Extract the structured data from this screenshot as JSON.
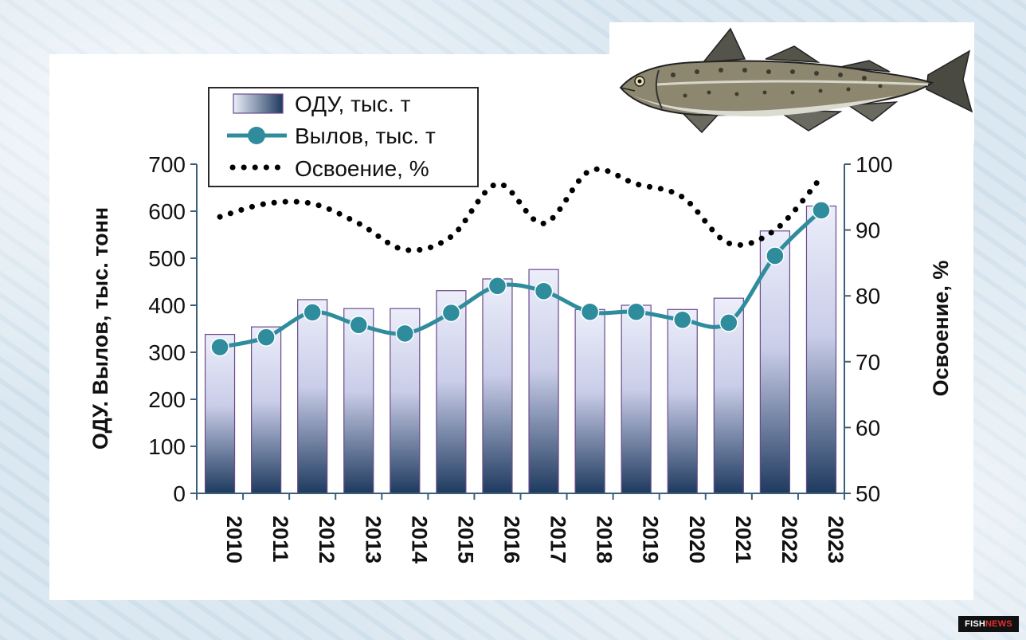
{
  "chart_data": {
    "type": "bar",
    "categories": [
      "2010",
      "2011",
      "2012",
      "2013",
      "2014",
      "2015",
      "2016",
      "2017",
      "2018",
      "2019",
      "2020",
      "2021",
      "2022",
      "2023"
    ],
    "series": [
      {
        "name": "ОДУ, тыс. т",
        "type": "bar",
        "axis": "left",
        "values": [
          338,
          354,
          412,
          393,
          393,
          431,
          456,
          476,
          391,
          400,
          391,
          415,
          558,
          611
        ]
      },
      {
        "name": "Вылов, тыс. т",
        "type": "line-marker",
        "axis": "left",
        "values": [
          311,
          332,
          385,
          358,
          340,
          384,
          441,
          430,
          386,
          386,
          369,
          363,
          505,
          602
        ]
      },
      {
        "name": "Освоение, %",
        "type": "dotted-line",
        "axis": "right",
        "values": [
          92,
          94,
          94,
          91,
          87,
          89,
          97,
          91,
          99,
          97,
          95,
          88,
          90,
          98
        ]
      }
    ],
    "ylabel": "ОДУ. Вылов, тыс. тонн",
    "y2label": "Освоение, %",
    "ylim": [
      0,
      700
    ],
    "y2lim": [
      50,
      100
    ],
    "yticks": [
      "0",
      "100",
      "200",
      "300",
      "400",
      "500",
      "600",
      "700"
    ],
    "y2ticks": [
      "50",
      "60",
      "70",
      "80",
      "90",
      "100"
    ],
    "legend_position": "top-left",
    "colors": {
      "bar_top": "#e8eaf8",
      "bar_bottom": "#1e3a5f",
      "bar_edge": "#6b4a8a",
      "catch_line": "#2e8c9c",
      "pct_dots": "#000000"
    }
  },
  "fish_icon": "cod-fish-illustration",
  "badge": {
    "part1": "FISH",
    "part2": "NEWS"
  }
}
